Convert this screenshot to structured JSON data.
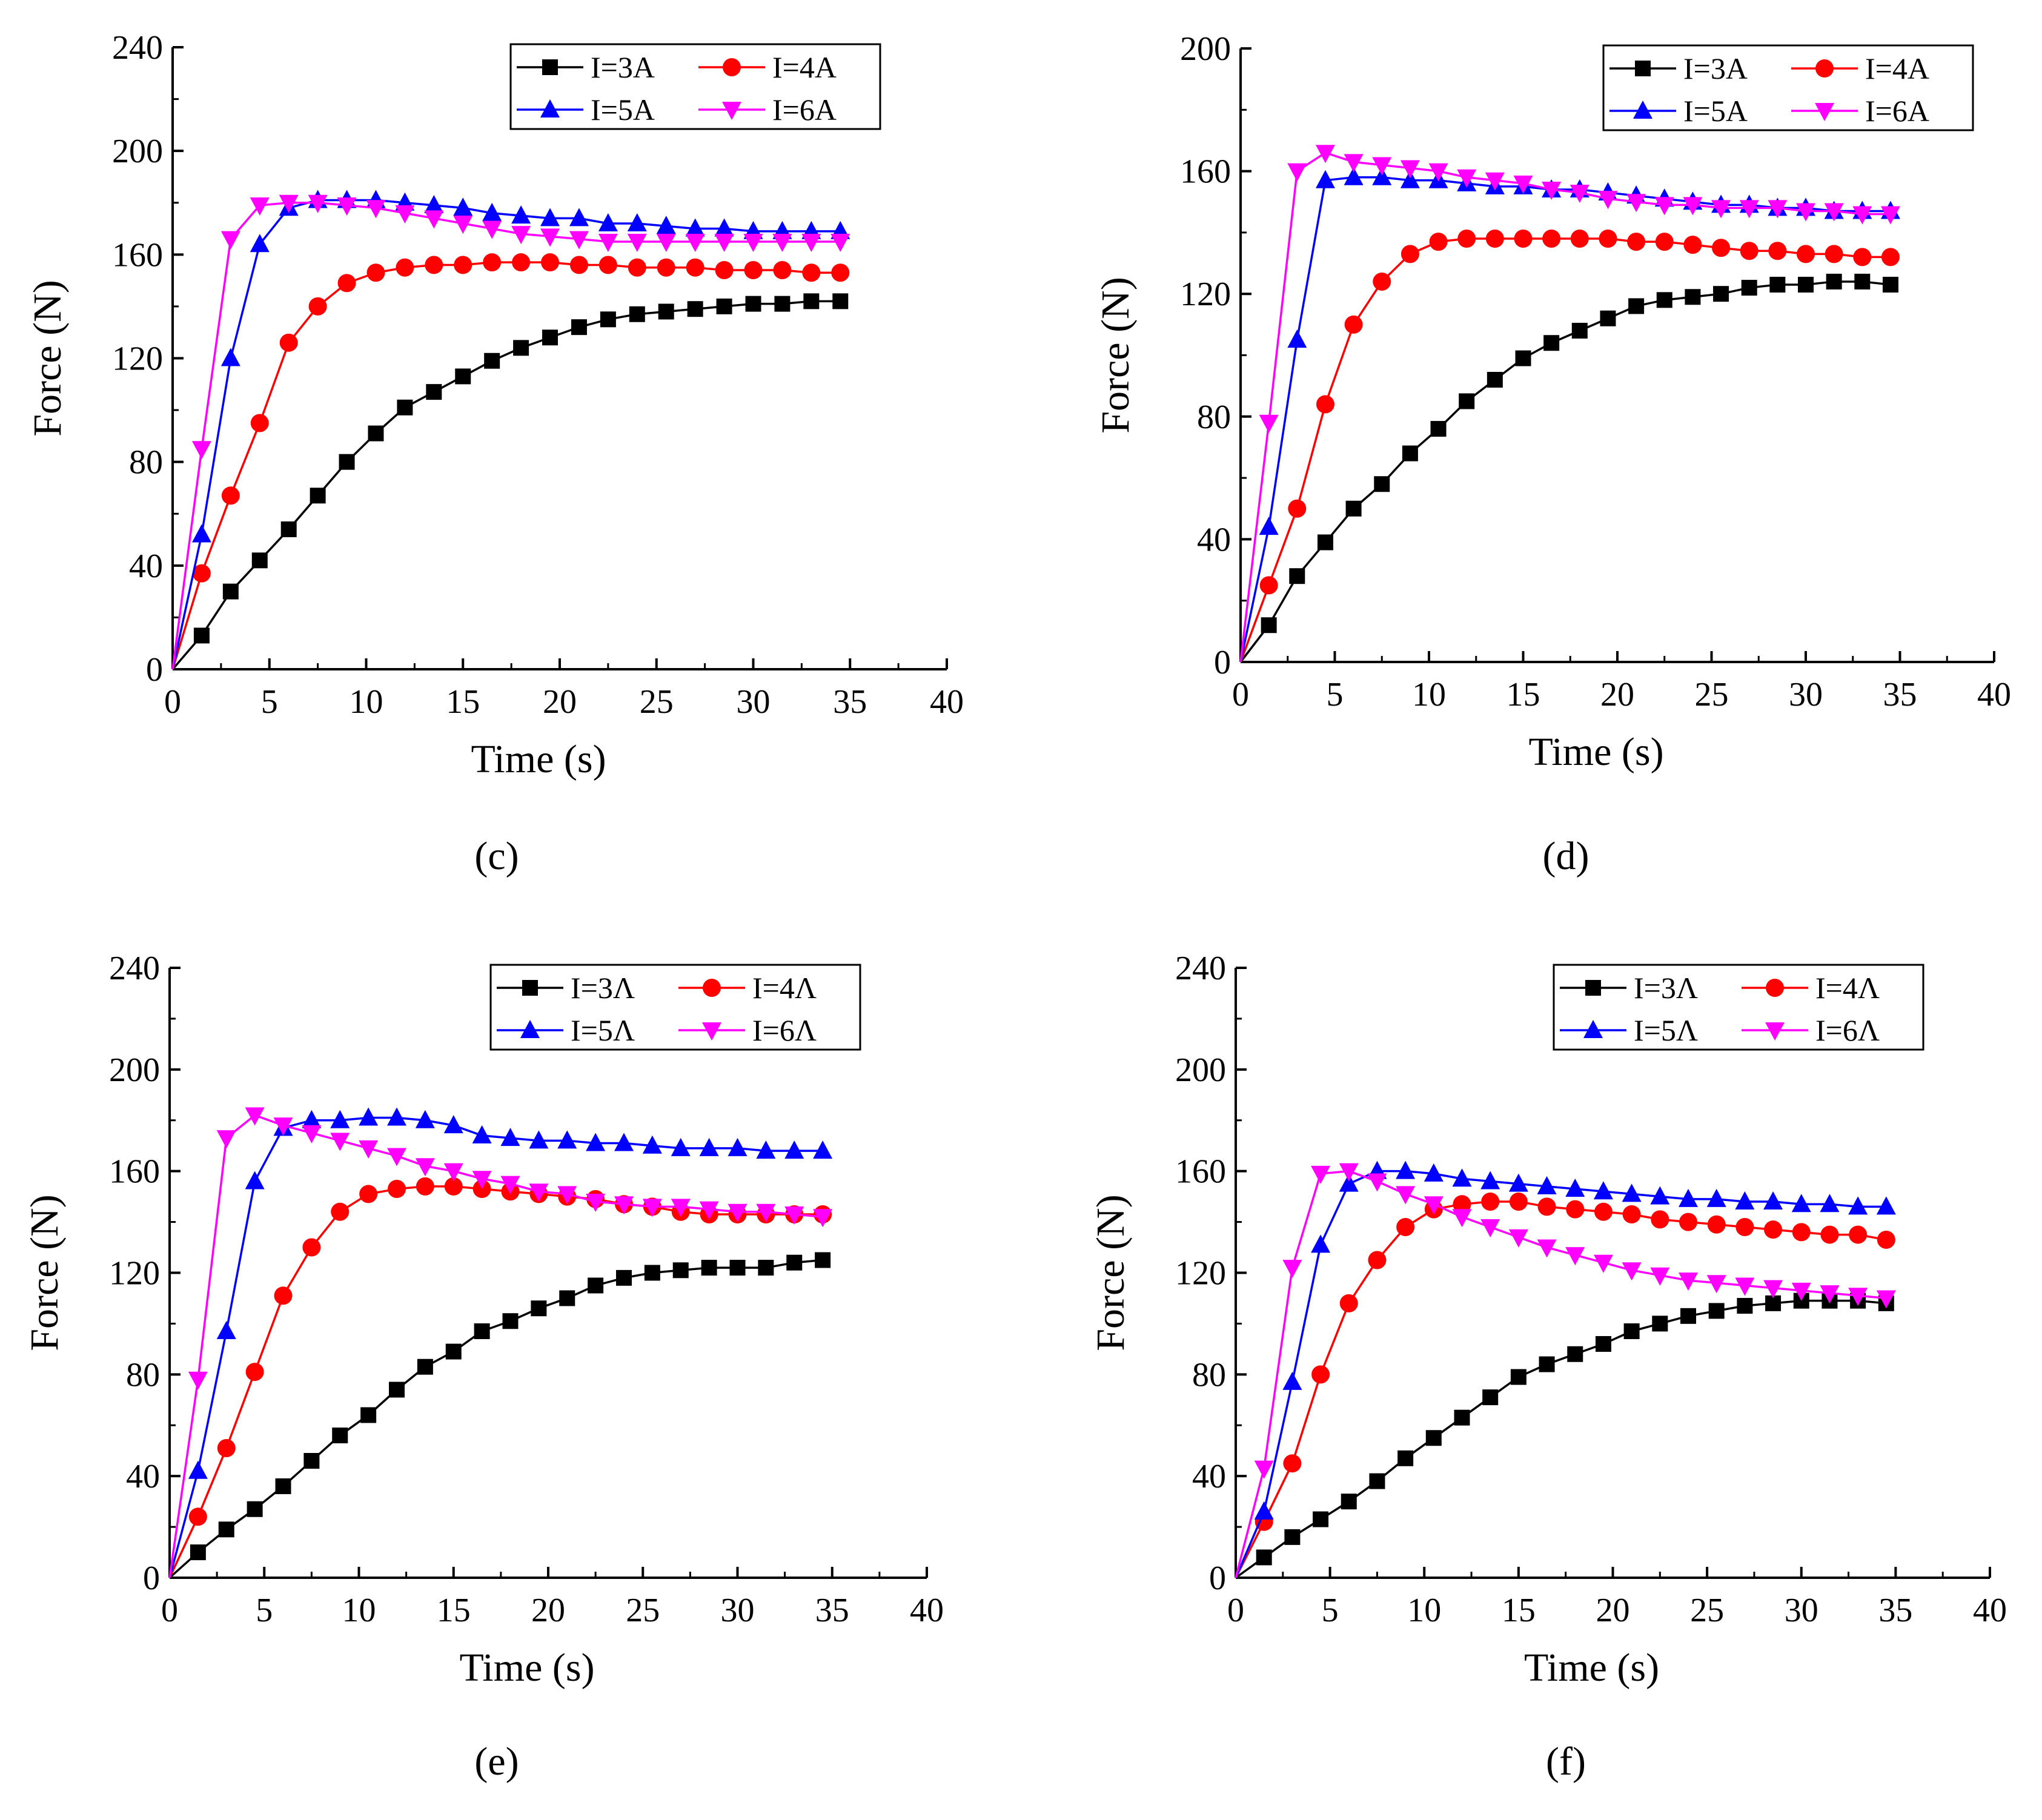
{
  "colors": {
    "I=3A": "#000000",
    "I=4A": "#ff0000",
    "I=5A": "#0000ff",
    "I=6A": "#ff00ff"
  },
  "chart_data": [
    {
      "panel": "c",
      "caption": "(c)",
      "type": "line",
      "xlabel": "Time (s)",
      "ylabel": "Force (N)",
      "xlim": [
        0,
        40
      ],
      "ylim": [
        0,
        240
      ],
      "xticks": [
        0,
        5,
        10,
        15,
        20,
        25,
        30,
        35,
        40
      ],
      "yticks": [
        0,
        40,
        80,
        120,
        160,
        200,
        240
      ],
      "legend_position": "top-right",
      "legend_labels": [
        "I=3A",
        "I=4A",
        "I=5A",
        "I=6A"
      ],
      "x": [
        0,
        1.5,
        3,
        4.5,
        6,
        7.5,
        9,
        10.5,
        12,
        13.5,
        15,
        16.5,
        18,
        19.5,
        21,
        22.5,
        24,
        25.5,
        27,
        28.5,
        30,
        31.5,
        33,
        34.5
      ],
      "series": [
        {
          "name": "I=3A",
          "marker": "square",
          "values": [
            0,
            13,
            30,
            42,
            54,
            67,
            80,
            91,
            101,
            107,
            113,
            119,
            124,
            128,
            132,
            135,
            137,
            138,
            139,
            140,
            141,
            141,
            142,
            142
          ]
        },
        {
          "name": "I=4A",
          "marker": "circle",
          "values": [
            0,
            37,
            67,
            95,
            126,
            140,
            149,
            153,
            155,
            156,
            156,
            157,
            157,
            157,
            156,
            156,
            155,
            155,
            155,
            154,
            154,
            154,
            153,
            153
          ]
        },
        {
          "name": "I=5A",
          "marker": "triangle-up",
          "values": [
            0,
            52,
            120,
            164,
            178,
            181,
            181,
            181,
            180,
            179,
            178,
            176,
            175,
            174,
            174,
            172,
            172,
            171,
            170,
            170,
            169,
            169,
            169,
            169
          ]
        },
        {
          "name": "I=6A",
          "marker": "triangle-down",
          "values": [
            0,
            85,
            166,
            179,
            180,
            180,
            179,
            178,
            176,
            174,
            172,
            170,
            168,
            167,
            166,
            165,
            165,
            165,
            165,
            165,
            165,
            165,
            165,
            165
          ]
        }
      ]
    },
    {
      "panel": "d",
      "caption": "(d)",
      "type": "line",
      "xlabel": "Time (s)",
      "ylabel": "Force (N)",
      "xlim": [
        0,
        40
      ],
      "ylim": [
        0,
        200
      ],
      "xticks": [
        0,
        5,
        10,
        15,
        20,
        25,
        30,
        35,
        40
      ],
      "yticks": [
        0,
        40,
        80,
        120,
        160,
        200
      ],
      "legend_position": "top-right",
      "legend_labels": [
        "I=3A",
        "I=4A",
        "I=5A",
        "I=6A"
      ],
      "x": [
        0,
        1.5,
        3,
        4.5,
        6,
        7.5,
        9,
        10.5,
        12,
        13.5,
        15,
        16.5,
        18,
        19.5,
        21,
        22.5,
        24,
        25.5,
        27,
        28.5,
        30,
        31.5,
        33,
        34.5
      ],
      "series": [
        {
          "name": "I=3A",
          "marker": "square",
          "values": [
            0,
            12,
            28,
            39,
            50,
            58,
            68,
            76,
            85,
            92,
            99,
            104,
            108,
            112,
            116,
            118,
            119,
            120,
            122,
            123,
            123,
            124,
            124,
            123
          ]
        },
        {
          "name": "I=4A",
          "marker": "circle",
          "values": [
            0,
            25,
            50,
            84,
            110,
            124,
            133,
            137,
            138,
            138,
            138,
            138,
            138,
            138,
            137,
            137,
            136,
            135,
            134,
            134,
            133,
            133,
            132,
            132
          ]
        },
        {
          "name": "I=5A",
          "marker": "triangle-up",
          "values": [
            0,
            44,
            105,
            157,
            158,
            158,
            157,
            157,
            156,
            155,
            155,
            154,
            154,
            153,
            152,
            151,
            150,
            149,
            149,
            148,
            148,
            147,
            147,
            147
          ]
        },
        {
          "name": "I=6A",
          "marker": "triangle-down",
          "values": [
            0,
            78,
            160,
            166,
            163,
            162,
            161,
            160,
            158,
            157,
            156,
            154,
            153,
            151,
            150,
            149,
            149,
            148,
            148,
            148,
            147,
            147,
            146,
            146
          ]
        }
      ]
    },
    {
      "panel": "e",
      "caption": "(e)",
      "type": "line",
      "xlabel": "Time (s)",
      "ylabel": "Force (N)",
      "xlim": [
        0,
        40
      ],
      "ylim": [
        0,
        240
      ],
      "xticks": [
        0,
        5,
        10,
        15,
        20,
        25,
        30,
        35,
        40
      ],
      "yticks": [
        0,
        40,
        80,
        120,
        160,
        200,
        240
      ],
      "legend_position": "top-right",
      "legend_labels": [
        "I=3Λ",
        "I=4Λ",
        "I=5Λ",
        "I=6Λ"
      ],
      "x": [
        0,
        1.5,
        3,
        4.5,
        6,
        7.5,
        9,
        10.5,
        12,
        13.5,
        15,
        16.5,
        18,
        19.5,
        21,
        22.5,
        24,
        25.5,
        27,
        28.5,
        30,
        31.5,
        33,
        34.5
      ],
      "series": [
        {
          "name": "I=3Λ",
          "marker": "square",
          "values": [
            0,
            10,
            19,
            27,
            36,
            46,
            56,
            64,
            74,
            83,
            89,
            97,
            101,
            106,
            110,
            115,
            118,
            120,
            121,
            122,
            122,
            122,
            124,
            125
          ]
        },
        {
          "name": "I=4Λ",
          "marker": "circle",
          "values": [
            0,
            24,
            51,
            81,
            111,
            130,
            144,
            151,
            153,
            154,
            154,
            153,
            152,
            151,
            150,
            149,
            147,
            146,
            144,
            143,
            143,
            143,
            143,
            143
          ]
        },
        {
          "name": "I=5Λ",
          "marker": "triangle-up",
          "values": [
            0,
            42,
            97,
            156,
            177,
            180,
            180,
            181,
            181,
            180,
            178,
            174,
            173,
            172,
            172,
            171,
            171,
            170,
            169,
            169,
            169,
            168,
            168,
            168
          ]
        },
        {
          "name": "I=6Λ",
          "marker": "triangle-down",
          "values": [
            0,
            78,
            173,
            182,
            178,
            175,
            172,
            169,
            166,
            162,
            160,
            157,
            155,
            152,
            151,
            148,
            147,
            146,
            146,
            145,
            144,
            144,
            143,
            142
          ]
        }
      ]
    },
    {
      "panel": "f",
      "caption": "(f)",
      "type": "line",
      "xlabel": "Time (s)",
      "ylabel": "Force (N)",
      "xlim": [
        0,
        40
      ],
      "ylim": [
        0,
        240
      ],
      "xticks": [
        0,
        5,
        10,
        15,
        20,
        25,
        30,
        35,
        40
      ],
      "yticks": [
        0,
        40,
        80,
        120,
        160,
        200,
        240
      ],
      "legend_position": "top-right",
      "legend_labels": [
        "I=3Λ",
        "I=4Λ",
        "I=5Λ",
        "I=6Λ"
      ],
      "x": [
        0,
        1.5,
        3,
        4.5,
        6,
        7.5,
        9,
        10.5,
        12,
        13.5,
        15,
        16.5,
        18,
        19.5,
        21,
        22.5,
        24,
        25.5,
        27,
        28.5,
        30,
        31.5,
        33,
        34.5
      ],
      "series": [
        {
          "name": "I=3Λ",
          "marker": "square",
          "values": [
            0,
            8,
            16,
            23,
            30,
            38,
            47,
            55,
            63,
            71,
            79,
            84,
            88,
            92,
            97,
            100,
            103,
            105,
            107,
            108,
            109,
            109,
            109,
            108
          ]
        },
        {
          "name": "I=4Λ",
          "marker": "circle",
          "values": [
            0,
            22,
            45,
            80,
            108,
            125,
            138,
            145,
            147,
            148,
            148,
            146,
            145,
            144,
            143,
            141,
            140,
            139,
            138,
            137,
            136,
            135,
            135,
            133
          ]
        },
        {
          "name": "I=5Λ",
          "marker": "triangle-up",
          "values": [
            0,
            26,
            77,
            131,
            155,
            160,
            160,
            159,
            157,
            156,
            155,
            154,
            153,
            152,
            151,
            150,
            149,
            149,
            148,
            148,
            147,
            147,
            146,
            146
          ]
        },
        {
          "name": "I=6Λ",
          "marker": "triangle-down",
          "values": [
            0,
            43,
            122,
            159,
            160,
            156,
            151,
            147,
            142,
            138,
            134,
            130,
            127,
            124,
            121,
            119,
            117,
            116,
            115,
            114,
            113,
            112,
            111,
            110
          ]
        }
      ]
    }
  ]
}
